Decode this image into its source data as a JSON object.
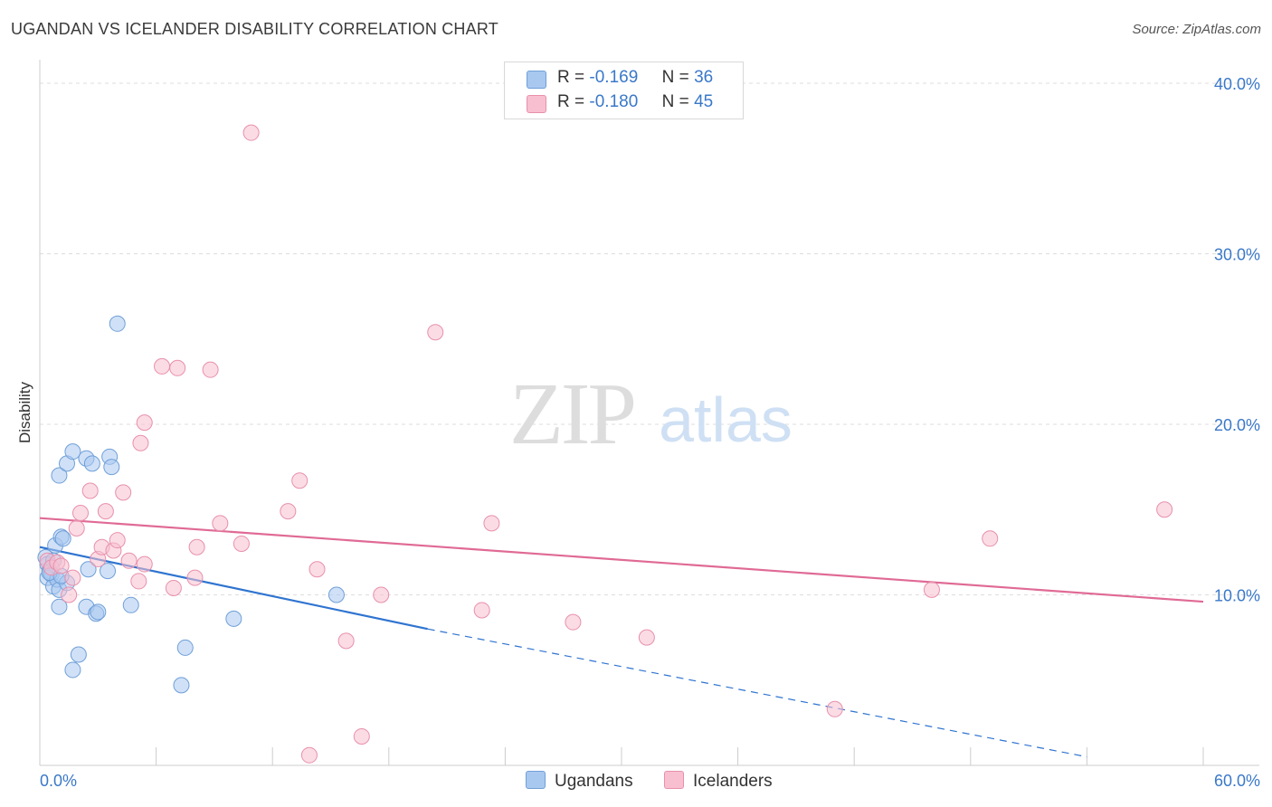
{
  "title": "UGANDAN VS ICELANDER DISABILITY CORRELATION CHART",
  "source": "Source: ZipAtlas.com",
  "watermark": {
    "zip": "ZIP",
    "atlas": "atlas"
  },
  "legend_top": {
    "ugandans": {
      "r_label": "R =",
      "r_value": "-0.169",
      "n_label": "N =",
      "n_value": "36"
    },
    "icelanders": {
      "r_label": "R =",
      "r_value": "-0.180",
      "n_label": "N =",
      "n_value": "45"
    }
  },
  "legend_bottom": {
    "ugandans": "Ugandans",
    "icelanders": "Icelanders"
  },
  "colors": {
    "ugandans_fill": "#a9c8f0",
    "ugandans_stroke": "#6f9fd8",
    "ugandans_line": "#2f74d0",
    "icelanders_fill": "#f8bfd0",
    "icelanders_stroke": "#e890ac",
    "icelanders_line": "#e06a95",
    "tick_text": "#3a78c9",
    "grid": "#dddddd"
  },
  "chart_data": {
    "type": "scatter",
    "title": "UGANDAN VS ICELANDER DISABILITY CORRELATION CHART",
    "xlabel": "",
    "ylabel": "Disability",
    "xlim": [
      0,
      60
    ],
    "ylim": [
      0,
      40
    ],
    "x_tick_labels": [
      "0.0%",
      "60.0%"
    ],
    "y_ticks": [
      10,
      20,
      30,
      40
    ],
    "y_tick_labels": [
      "10.0%",
      "20.0%",
      "30.0%",
      "40.0%"
    ],
    "series": [
      {
        "name": "Ugandans",
        "r": -0.169,
        "n": 36,
        "trend": {
          "x0": 0,
          "y0": 12.8,
          "x1": 20,
          "y1": 8.0,
          "dashed_to_x": 54,
          "dashed_to_y": 0.5
        },
        "points": [
          [
            0.3,
            12.2
          ],
          [
            0.4,
            11.8
          ],
          [
            0.5,
            11.4
          ],
          [
            0.4,
            11.0
          ],
          [
            0.6,
            11.2
          ],
          [
            0.7,
            10.5
          ],
          [
            0.8,
            12.9
          ],
          [
            0.9,
            10.9
          ],
          [
            1.0,
            10.3
          ],
          [
            1.0,
            9.3
          ],
          [
            1.1,
            13.4
          ],
          [
            1.2,
            13.3
          ],
          [
            1.4,
            10.7
          ],
          [
            1.0,
            17.0
          ],
          [
            1.4,
            17.7
          ],
          [
            1.7,
            18.4
          ],
          [
            2.4,
            18.0
          ],
          [
            2.7,
            17.7
          ],
          [
            3.6,
            18.1
          ],
          [
            3.7,
            17.5
          ],
          [
            2.5,
            11.5
          ],
          [
            3.5,
            11.4
          ],
          [
            2.4,
            9.3
          ],
          [
            2.9,
            8.9
          ],
          [
            3.0,
            9.0
          ],
          [
            4.7,
            9.4
          ],
          [
            4.0,
            25.9
          ],
          [
            2.0,
            6.5
          ],
          [
            1.7,
            5.6
          ],
          [
            7.5,
            6.9
          ],
          [
            7.3,
            4.7
          ],
          [
            10.0,
            8.6
          ],
          [
            15.3,
            10.0
          ],
          [
            0.5,
            11.3
          ],
          [
            0.7,
            12.0
          ],
          [
            1.1,
            11.1
          ]
        ]
      },
      {
        "name": "Icelanders",
        "r": -0.18,
        "n": 45,
        "trend": {
          "x0": 0,
          "y0": 14.5,
          "x1": 60,
          "y1": 9.6
        },
        "points": [
          [
            0.4,
            12.0
          ],
          [
            0.6,
            11.6
          ],
          [
            0.9,
            11.9
          ],
          [
            1.1,
            11.7
          ],
          [
            1.5,
            10.0
          ],
          [
            1.7,
            11.0
          ],
          [
            1.9,
            13.9
          ],
          [
            2.1,
            14.8
          ],
          [
            2.6,
            16.1
          ],
          [
            3.0,
            12.1
          ],
          [
            3.2,
            12.8
          ],
          [
            3.4,
            14.9
          ],
          [
            3.8,
            12.6
          ],
          [
            4.0,
            13.2
          ],
          [
            4.3,
            16.0
          ],
          [
            4.6,
            12.0
          ],
          [
            5.1,
            10.8
          ],
          [
            5.4,
            11.8
          ],
          [
            5.2,
            18.9
          ],
          [
            5.4,
            20.1
          ],
          [
            6.3,
            23.4
          ],
          [
            7.1,
            23.3
          ],
          [
            6.9,
            10.4
          ],
          [
            8.0,
            11.0
          ],
          [
            8.1,
            12.8
          ],
          [
            8.8,
            23.2
          ],
          [
            9.3,
            14.2
          ],
          [
            10.4,
            13.0
          ],
          [
            10.9,
            37.1
          ],
          [
            12.8,
            14.9
          ],
          [
            13.4,
            16.7
          ],
          [
            13.9,
            0.6
          ],
          [
            14.3,
            11.5
          ],
          [
            15.8,
            7.3
          ],
          [
            16.6,
            1.7
          ],
          [
            17.6,
            10.0
          ],
          [
            20.4,
            25.4
          ],
          [
            22.8,
            9.1
          ],
          [
            23.3,
            14.2
          ],
          [
            27.5,
            8.4
          ],
          [
            31.3,
            7.5
          ],
          [
            41.0,
            3.3
          ],
          [
            46.0,
            10.3
          ],
          [
            49.0,
            13.3
          ],
          [
            58.0,
            15.0
          ]
        ]
      }
    ]
  }
}
